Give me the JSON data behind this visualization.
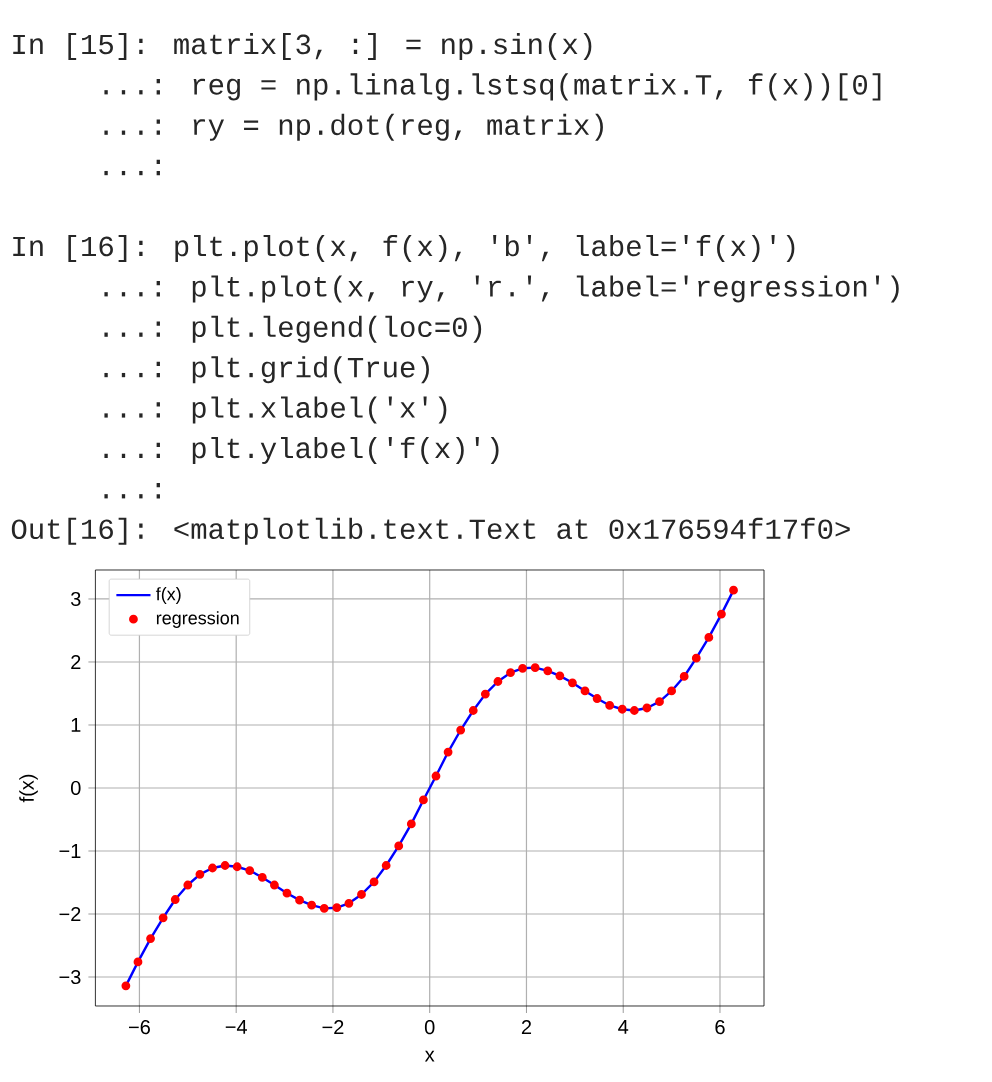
{
  "chart_data": {
    "type": "line",
    "xlabel": "x",
    "ylabel": "f(x)",
    "x": [
      -6.28,
      -6.03,
      -5.77,
      -5.51,
      -5.26,
      -5.0,
      -4.75,
      -4.49,
      -4.23,
      -3.98,
      -3.72,
      -3.46,
      -3.21,
      -2.95,
      -2.69,
      -2.44,
      -2.18,
      -1.92,
      -1.67,
      -1.41,
      -1.15,
      -0.9,
      -0.64,
      -0.38,
      -0.13,
      0.13,
      0.38,
      0.64,
      0.9,
      1.15,
      1.41,
      1.67,
      1.92,
      2.18,
      2.44,
      2.69,
      2.95,
      3.21,
      3.46,
      3.72,
      3.98,
      4.23,
      4.49,
      4.75,
      5.0,
      5.26,
      5.51,
      5.77,
      6.03,
      6.28
    ],
    "series": [
      {
        "name": "f(x)",
        "color": "#0000ff",
        "values": [
          -3.14,
          -2.76,
          -2.39,
          -2.06,
          -1.77,
          -1.54,
          -1.37,
          -1.27,
          -1.23,
          -1.25,
          -1.31,
          -1.42,
          -1.54,
          -1.67,
          -1.78,
          -1.86,
          -1.91,
          -1.9,
          -1.83,
          -1.69,
          -1.49,
          -1.23,
          -0.92,
          -0.57,
          -0.19,
          0.19,
          0.57,
          0.92,
          1.23,
          1.49,
          1.69,
          1.83,
          1.9,
          1.91,
          1.86,
          1.78,
          1.67,
          1.54,
          1.42,
          1.31,
          1.25,
          1.23,
          1.27,
          1.37,
          1.54,
          1.77,
          2.06,
          2.39,
          2.76,
          3.14
        ]
      },
      {
        "name": "regression",
        "type": "scatter",
        "marker": "circle",
        "color": "#ff0000",
        "values": [
          -3.14,
          -2.76,
          -2.39,
          -2.06,
          -1.77,
          -1.54,
          -1.37,
          -1.27,
          -1.23,
          -1.25,
          -1.31,
          -1.42,
          -1.54,
          -1.67,
          -1.78,
          -1.86,
          -1.91,
          -1.9,
          -1.83,
          -1.69,
          -1.49,
          -1.23,
          -0.92,
          -0.57,
          -0.19,
          0.19,
          0.57,
          0.92,
          1.23,
          1.49,
          1.69,
          1.83,
          1.9,
          1.91,
          1.86,
          1.78,
          1.67,
          1.54,
          1.42,
          1.31,
          1.25,
          1.23,
          1.27,
          1.37,
          1.54,
          1.77,
          2.06,
          2.39,
          2.76,
          3.14
        ]
      }
    ],
    "xlim": [
      -6.91,
      6.91
    ],
    "ylim": [
      -3.46,
      3.46
    ],
    "xticks": [
      {
        "value": -6,
        "label": "−6"
      },
      {
        "value": -4,
        "label": "−4"
      },
      {
        "value": -2,
        "label": "−2"
      },
      0,
      2,
      4,
      6
    ],
    "yticks": [
      {
        "value": -3,
        "label": "−3"
      },
      {
        "value": -2,
        "label": "−2"
      },
      {
        "value": -1,
        "label": "−1"
      },
      0,
      1,
      2,
      3
    ],
    "grid": true,
    "legend": "top left",
    "annotations": [
      "In [15]: matrix[3, :] = np.sin(x)",
      "    ...: reg = np.linalg.lstsq(matrix.T, f(x))[0]",
      "    ...: ry = np.dot(reg, matrix)",
      "    ...:",
      "In [16]: plt.plot(x, f(x), 'b', label='f(x)')",
      "    ...: plt.plot(x, ry, 'r.', label='regression')",
      "    ...: plt.legend(loc=0)",
      "    ...: plt.grid(True)",
      "    ...: plt.xlabel('x')",
      "    ...: plt.ylabel('f(x)')",
      "    ...:",
      "Out[16]: <matplotlib.text.Text at 0x176594f17f0>"
    ]
  }
}
